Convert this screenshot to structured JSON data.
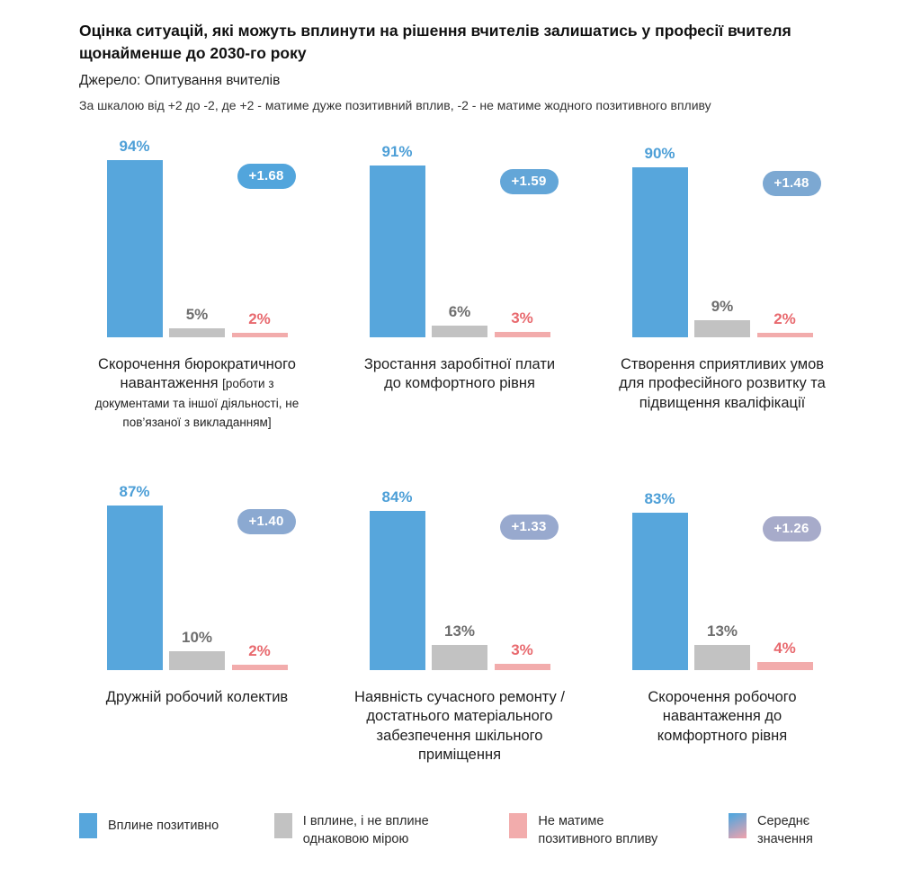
{
  "header": {
    "title": "Оцінка ситуацій, які можуть вплинути на рішення вчителів залишатись у професії вчителя щонайменше до 2030-го року",
    "source": "Джерело: Опитування вчителів",
    "scale_note": "За шкалою від +2 до -2, де +2 - матиме дуже позитивний вплив, -2 - не матиме жодного позитивного впливу"
  },
  "chart_data": {
    "type": "bar",
    "title": "Оцінка ситуацій, які можуть вплинути на рішення вчителів залишатись у професії вчителя щонайменше до 2030-го року",
    "ylim": [
      0,
      100
    ],
    "grid": false,
    "legend_position": "bottom",
    "series_names": [
      "Вплине позитивно",
      "І вплине, і не вплине однаковою мірою",
      "Не матиме позитивного впливу"
    ],
    "panels": [
      {
        "caption": "Скорочення бюрократичного навантаження ",
        "caption_note": "[роботи з документами та іншої діяльності, не пов’язаної з викладанням]",
        "values": {
          "positive": 94,
          "neutral": 5,
          "negative": 2
        },
        "labels": {
          "positive": "94%",
          "neutral": "5%",
          "negative": "2%"
        },
        "average": "+1.68",
        "badge_color": "#52A5DC"
      },
      {
        "caption": "Зростання заробітної плати до комфортного рівня",
        "values": {
          "positive": 91,
          "neutral": 6,
          "negative": 3
        },
        "labels": {
          "positive": "91%",
          "neutral": "6%",
          "negative": "3%"
        },
        "average": "+1.59",
        "badge_color": "#63A6D8"
      },
      {
        "caption": "Створення сприятливих умов для професійного розвитку та підвищення кваліфікації",
        "values": {
          "positive": 90,
          "neutral": 9,
          "negative": 2
        },
        "labels": {
          "positive": "90%",
          "neutral": "9%",
          "negative": "2%"
        },
        "average": "+1.48",
        "badge_color": "#7CA8D2"
      },
      {
        "caption": "Дружній робочий колектив",
        "values": {
          "positive": 87,
          "neutral": 10,
          "negative": 2
        },
        "labels": {
          "positive": "87%",
          "neutral": "10%",
          "negative": "2%"
        },
        "average": "+1.40",
        "badge_color": "#8BA9D1"
      },
      {
        "caption": "Наявність сучасного ремонту / достатнього матеріального забезпечення шкільного приміщення",
        "values": {
          "positive": 84,
          "neutral": 13,
          "negative": 3
        },
        "labels": {
          "positive": "84%",
          "neutral": "13%",
          "negative": "3%"
        },
        "average": "+1.33",
        "badge_color": "#98A9CE"
      },
      {
        "caption": "Скорочення робочого навантаження до комфортного рівня",
        "values": {
          "positive": 83,
          "neutral": 13,
          "negative": 4
        },
        "labels": {
          "positive": "83%",
          "neutral": "13%",
          "negative": "4%"
        },
        "average": "+1.26",
        "badge_color": "#A7ABCA"
      }
    ]
  },
  "colors": {
    "bar_positive": "#57A6DC",
    "bar_neutral": "#C2C2C2",
    "bar_negative": "#F2ACAC",
    "label_positive": "#4D9FD7",
    "label_neutral": "#6E6E6E",
    "label_negative": "#E8696E"
  },
  "legend": {
    "items": [
      {
        "label": "Вплине позитивно",
        "type": "solid",
        "color": "#57A6DC"
      },
      {
        "label": "І вплине, і не вплине однаковою мірою",
        "type": "solid",
        "color": "#C2C2C2"
      },
      {
        "label": "Не матиме позитивного впливу",
        "type": "solid",
        "color": "#F2ACAC"
      },
      {
        "label": "Середнє значення",
        "type": "gradient",
        "gradient_from": "#57A6DC",
        "gradient_to": "#E9A2AE"
      }
    ]
  }
}
